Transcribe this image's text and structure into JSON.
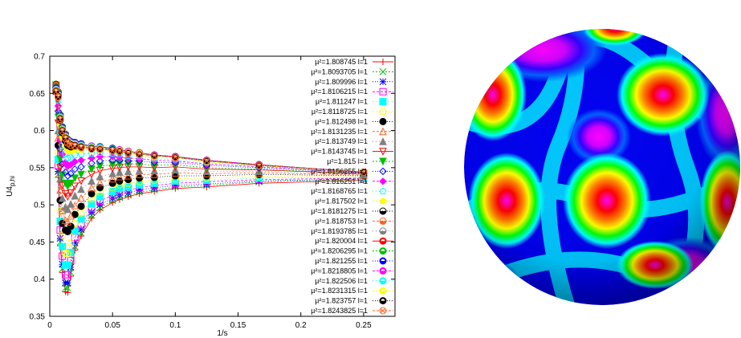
{
  "chart_data": {
    "type": "line",
    "xlabel": "1/s",
    "ylabel": "U4",
    "ylabel_sub": "p,hi",
    "xlim": [
      0,
      0.275
    ],
    "ylim": [
      0.35,
      0.7
    ],
    "x_ticks": [
      "0",
      "0.05",
      "0.1",
      "0.15",
      "0.2",
      "0.25"
    ],
    "y_ticks": [
      "0.35",
      "0.4",
      "0.45",
      "0.5",
      "0.55",
      "0.6",
      "0.65",
      "0.7"
    ],
    "grid": false,
    "legend_position": "top-right",
    "x": [
      0.005,
      0.0067,
      0.0083,
      0.01,
      0.0125,
      0.0143,
      0.0167,
      0.02,
      0.025,
      0.0333,
      0.04,
      0.05,
      0.0556,
      0.0625,
      0.0714,
      0.0833,
      0.1,
      0.125,
      0.1667,
      0.25
    ],
    "series": [
      {
        "name": "µ²=1.808745 l=1",
        "color": "#ff0000",
        "marker": "plus",
        "dash": "",
        "values": [
          0.651,
          0.537,
          0.445,
          0.409,
          0.383,
          0.382,
          0.404,
          0.439,
          0.458,
          0.482,
          0.493,
          0.503,
          0.507,
          0.511,
          0.515,
          0.518,
          0.522,
          0.524,
          0.529,
          0.533
        ]
      },
      {
        "name": "µ²=1.8093705 l=1",
        "color": "#00c000",
        "marker": "x",
        "dash": "2,2",
        "values": [
          0.652,
          0.541,
          0.45,
          0.414,
          0.388,
          0.388,
          0.409,
          0.444,
          0.462,
          0.486,
          0.496,
          0.506,
          0.51,
          0.513,
          0.517,
          0.52,
          0.524,
          0.526,
          0.531,
          0.534
        ]
      },
      {
        "name": "µ²=1.809996 l=1",
        "color": "#0000ff",
        "marker": "star",
        "dash": "1,2",
        "values": [
          0.653,
          0.545,
          0.455,
          0.42,
          0.395,
          0.395,
          0.416,
          0.449,
          0.467,
          0.49,
          0.5,
          0.509,
          0.513,
          0.516,
          0.52,
          0.523,
          0.526,
          0.528,
          0.532,
          0.535
        ]
      },
      {
        "name": "µ²=1.8106215 l=1",
        "color": "#ff00ff",
        "marker": "square-open",
        "dash": "3,2",
        "values": [
          0.654,
          0.553,
          0.466,
          0.431,
          0.406,
          0.406,
          0.425,
          0.456,
          0.473,
          0.495,
          0.505,
          0.513,
          0.517,
          0.52,
          0.523,
          0.526,
          0.529,
          0.531,
          0.534,
          0.536
        ]
      },
      {
        "name": "µ²=1.811247 l=1",
        "color": "#00ffff",
        "marker": "square",
        "dash": "1,3",
        "values": [
          0.655,
          0.561,
          0.478,
          0.444,
          0.419,
          0.419,
          0.436,
          0.465,
          0.481,
          0.501,
          0.511,
          0.518,
          0.522,
          0.524,
          0.527,
          0.529,
          0.532,
          0.533,
          0.536,
          0.537
        ]
      },
      {
        "name": "µ²=1.8118725 l=1",
        "color": "#ffff00",
        "marker": "circle-open",
        "dash": "2,2",
        "values": [
          0.656,
          0.57,
          0.492,
          0.459,
          0.435,
          0.434,
          0.449,
          0.475,
          0.489,
          0.508,
          0.517,
          0.523,
          0.527,
          0.529,
          0.531,
          0.533,
          0.535,
          0.536,
          0.538,
          0.538
        ]
      },
      {
        "name": "µ²=1.812498 l=1",
        "color": "#000000",
        "marker": "circle",
        "dash": "1,2",
        "values": [
          0.657,
          0.58,
          0.506,
          0.475,
          0.466,
          0.464,
          0.471,
          0.487,
          0.498,
          0.515,
          0.523,
          0.529,
          0.532,
          0.534,
          0.536,
          0.537,
          0.539,
          0.539,
          0.541,
          0.539
        ]
      },
      {
        "name": "µ²=1.8131235 l=1",
        "color": "#ff6020",
        "marker": "triangle-open",
        "dash": "3,2",
        "values": [
          0.658,
          0.59,
          0.52,
          0.492,
          0.479,
          0.477,
          0.485,
          0.499,
          0.509,
          0.523,
          0.53,
          0.535,
          0.538,
          0.539,
          0.541,
          0.541,
          0.543,
          0.542,
          0.543,
          0.54
        ]
      },
      {
        "name": "µ²=1.813749 l=1",
        "color": "#808080",
        "marker": "triangle",
        "dash": "1,3",
        "values": [
          0.659,
          0.6,
          0.535,
          0.509,
          0.497,
          0.494,
          0.501,
          0.512,
          0.521,
          0.532,
          0.538,
          0.542,
          0.544,
          0.545,
          0.546,
          0.546,
          0.547,
          0.545,
          0.545,
          0.541
        ]
      },
      {
        "name": "µ²=1.8143745 l=1",
        "color": "#ff0000",
        "marker": "triangle-down-open",
        "dash": "",
        "values": [
          0.66,
          0.61,
          0.55,
          0.526,
          0.515,
          0.511,
          0.516,
          0.525,
          0.532,
          0.541,
          0.546,
          0.549,
          0.55,
          0.551,
          0.551,
          0.55,
          0.551,
          0.548,
          0.547,
          0.542
        ]
      },
      {
        "name": "µ²=1.815 l=1",
        "color": "#00c000",
        "marker": "triangle-down",
        "dash": "2,2",
        "values": [
          0.661,
          0.618,
          0.562,
          0.54,
          0.529,
          0.525,
          0.529,
          0.536,
          0.541,
          0.548,
          0.552,
          0.554,
          0.555,
          0.555,
          0.555,
          0.553,
          0.554,
          0.55,
          0.548,
          0.542
        ]
      },
      {
        "name": "µ²=1.8156255 l=1",
        "color": "#0000ff",
        "marker": "diamond-open",
        "dash": "1,2",
        "values": [
          0.662,
          0.626,
          0.575,
          0.555,
          0.544,
          0.539,
          0.542,
          0.548,
          0.551,
          0.556,
          0.559,
          0.56,
          0.56,
          0.559,
          0.559,
          0.557,
          0.557,
          0.553,
          0.55,
          0.543
        ]
      },
      {
        "name": "µ²=1.816251 l=1",
        "color": "#ff00ff",
        "marker": "diamond",
        "dash": "3,2",
        "values": [
          0.662,
          0.633,
          0.587,
          0.568,
          0.557,
          0.552,
          0.554,
          0.558,
          0.56,
          0.563,
          0.565,
          0.565,
          0.564,
          0.563,
          0.562,
          0.56,
          0.559,
          0.555,
          0.551,
          0.543
        ]
      },
      {
        "name": "µ²=1.8168765 l=1",
        "color": "#00ffff",
        "marker": "pentagon-open",
        "dash": "1,3",
        "values": [
          0.663,
          0.64,
          0.598,
          0.58,
          0.569,
          0.563,
          0.564,
          0.567,
          0.568,
          0.569,
          0.57,
          0.569,
          0.568,
          0.566,
          0.565,
          0.562,
          0.561,
          0.557,
          0.552,
          0.544
        ]
      },
      {
        "name": "µ²=1.817502 l=1",
        "color": "#ffff00",
        "marker": "pentagon",
        "dash": "2,2",
        "values": [
          0.663,
          0.645,
          0.607,
          0.59,
          0.579,
          0.573,
          0.572,
          0.574,
          0.574,
          0.574,
          0.574,
          0.572,
          0.571,
          0.569,
          0.567,
          0.564,
          0.563,
          0.558,
          0.553,
          0.544
        ]
      },
      {
        "name": "µ²=1.8181275 l=1",
        "color": "#000000",
        "marker": "circle-half-open",
        "dash": "1,2",
        "values": [
          0.662,
          0.649,
          0.614,
          0.597,
          0.586,
          0.58,
          0.578,
          0.579,
          0.578,
          0.577,
          0.576,
          0.574,
          0.573,
          0.571,
          0.569,
          0.566,
          0.564,
          0.559,
          0.554,
          0.544
        ]
      },
      {
        "name": "µ²=1.818753 l=1",
        "color": "#ff6020",
        "marker": "circle-half-open",
        "dash": "3,2",
        "values": [
          0.661,
          0.651,
          0.618,
          0.602,
          0.591,
          0.585,
          0.582,
          0.582,
          0.58,
          0.578,
          0.577,
          0.575,
          0.574,
          0.572,
          0.57,
          0.567,
          0.565,
          0.56,
          0.554,
          0.544
        ]
      },
      {
        "name": "µ²=1.8193785 l=1",
        "color": "#808080",
        "marker": "circle-half-open",
        "dash": "1,3",
        "values": [
          0.66,
          0.652,
          0.62,
          0.604,
          0.594,
          0.587,
          0.584,
          0.583,
          0.581,
          0.579,
          0.578,
          0.576,
          0.574,
          0.572,
          0.57,
          0.567,
          0.565,
          0.56,
          0.554,
          0.544
        ]
      },
      {
        "name": "µ²=1.820004 l=1",
        "color": "#ff0000",
        "marker": "circle-half",
        "dash": "",
        "values": [
          0.659,
          0.652,
          0.621,
          0.605,
          0.595,
          0.588,
          0.585,
          0.584,
          0.582,
          0.579,
          0.578,
          0.576,
          0.574,
          0.572,
          0.57,
          0.567,
          0.565,
          0.56,
          0.554,
          0.544
        ]
      },
      {
        "name": "µ²=1.8206295 l=1",
        "color": "#00c000",
        "marker": "circle-half",
        "dash": "2,2",
        "values": [
          0.658,
          0.651,
          0.621,
          0.605,
          0.595,
          0.588,
          0.585,
          0.584,
          0.582,
          0.579,
          0.578,
          0.576,
          0.574,
          0.572,
          0.57,
          0.567,
          0.565,
          0.56,
          0.554,
          0.544
        ]
      },
      {
        "name": "µ²=1.821255 l=1",
        "color": "#0000ff",
        "marker": "circle-half",
        "dash": "1,2",
        "values": [
          0.657,
          0.65,
          0.62,
          0.604,
          0.594,
          0.588,
          0.585,
          0.584,
          0.582,
          0.579,
          0.578,
          0.576,
          0.574,
          0.572,
          0.57,
          0.567,
          0.565,
          0.56,
          0.554,
          0.544
        ]
      },
      {
        "name": "µ²=1.8218805 l=1",
        "color": "#ff00ff",
        "marker": "circle-half",
        "dash": "3,2",
        "values": [
          0.656,
          0.649,
          0.619,
          0.603,
          0.593,
          0.587,
          0.584,
          0.583,
          0.581,
          0.579,
          0.577,
          0.575,
          0.574,
          0.572,
          0.57,
          0.567,
          0.565,
          0.56,
          0.554,
          0.544
        ]
      },
      {
        "name": "µ²=1.822506 l=1",
        "color": "#00ffff",
        "marker": "circle-half",
        "dash": "1,3",
        "values": [
          0.655,
          0.648,
          0.618,
          0.602,
          0.592,
          0.586,
          0.583,
          0.582,
          0.58,
          0.578,
          0.577,
          0.575,
          0.573,
          0.571,
          0.569,
          0.566,
          0.564,
          0.559,
          0.553,
          0.544
        ]
      },
      {
        "name": "µ²=1.8231315 l=1",
        "color": "#ffff00",
        "marker": "circle-half",
        "dash": "2,2",
        "values": [
          0.654,
          0.647,
          0.617,
          0.601,
          0.591,
          0.585,
          0.582,
          0.581,
          0.579,
          0.577,
          0.576,
          0.574,
          0.573,
          0.571,
          0.569,
          0.566,
          0.564,
          0.559,
          0.553,
          0.544
        ]
      },
      {
        "name": "µ²=1.823757 l=1",
        "color": "#000000",
        "marker": "circle-half",
        "dash": "1,2",
        "values": [
          0.653,
          0.646,
          0.616,
          0.6,
          0.59,
          0.584,
          0.581,
          0.58,
          0.578,
          0.576,
          0.575,
          0.574,
          0.572,
          0.57,
          0.568,
          0.566,
          0.564,
          0.559,
          0.553,
          0.544
        ]
      },
      {
        "name": "µ²=1.8243825 l=1",
        "color": "#ff6020",
        "marker": "circle-cross",
        "dash": "3,2",
        "values": [
          0.652,
          0.645,
          0.615,
          0.599,
          0.589,
          0.583,
          0.58,
          0.579,
          0.577,
          0.575,
          0.575,
          0.573,
          0.572,
          0.57,
          0.568,
          0.566,
          0.564,
          0.559,
          0.553,
          0.544
        ]
      }
    ]
  },
  "sphere": {
    "colormap": [
      "#0000ff",
      "#00aaff",
      "#00ffff",
      "#00ff80",
      "#00ff00",
      "#ffff00",
      "#ff8000",
      "#ff0000",
      "#ff00ff"
    ]
  }
}
